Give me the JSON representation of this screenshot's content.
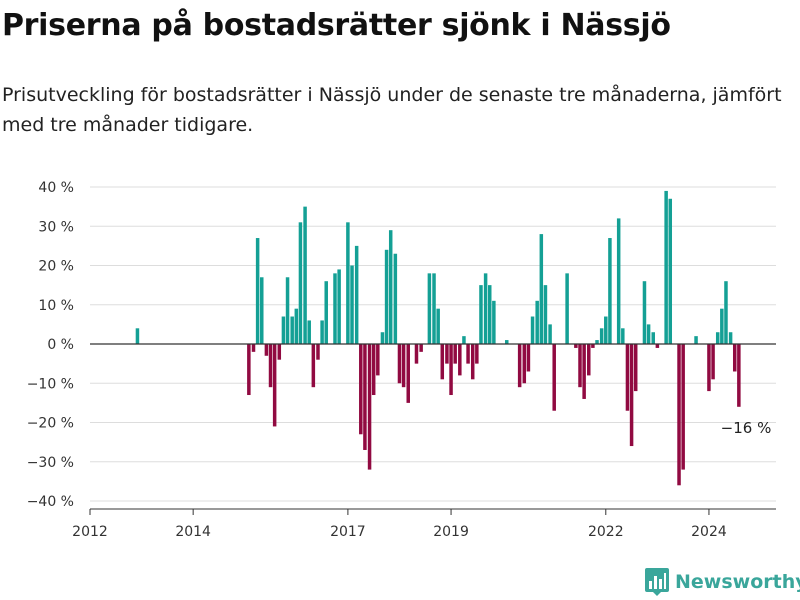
{
  "title": "Priserna på bostadsrätter sjönk i Nässjö",
  "subtitle": "Prisutveckling för bostadsrätter i Nässjö under de senaste tre månaderna, jämfört med tre månader tidigare.",
  "brand": {
    "name": "Newsworthy",
    "icon": "newsworthy-logo-icon"
  },
  "colors": {
    "positive": "#14a095",
    "negative": "#910a41",
    "grid": "#dddddd",
    "zero": "#333333",
    "brand": "#3aa69b"
  },
  "chart_data": {
    "type": "bar",
    "xlabel": "",
    "ylabel": "",
    "ylim": [
      -40,
      40
    ],
    "xlim": [
      2012,
      2025.3
    ],
    "y_ticks": [
      40,
      30,
      20,
      10,
      0,
      -10,
      -20,
      -30,
      -40
    ],
    "y_tick_labels": [
      "40 %",
      "30 %",
      "20 %",
      "10 %",
      "0 %",
      "−10 %",
      "−20 %",
      "−30 %",
      "−40 %"
    ],
    "x_ticks": [
      2012,
      2014,
      2017,
      2019,
      2022,
      2024
    ],
    "x_tick_labels": [
      "2012",
      "2014",
      "2017",
      "2019",
      "2022",
      "2024"
    ],
    "grid": true,
    "annotation": {
      "text": "−16 %",
      "x": 2024.6,
      "y": -16
    },
    "series": [
      {
        "values": [
          {
            "x": 2012.92,
            "y": 4
          },
          {
            "x": 2015.08,
            "y": -13
          },
          {
            "x": 2015.17,
            "y": -2
          },
          {
            "x": 2015.25,
            "y": 27
          },
          {
            "x": 2015.33,
            "y": 17
          },
          {
            "x": 2015.42,
            "y": -3
          },
          {
            "x": 2015.5,
            "y": -11
          },
          {
            "x": 2015.58,
            "y": -21
          },
          {
            "x": 2015.67,
            "y": -4
          },
          {
            "x": 2015.75,
            "y": 7
          },
          {
            "x": 2015.83,
            "y": 17
          },
          {
            "x": 2015.92,
            "y": 7
          },
          {
            "x": 2016.0,
            "y": 9
          },
          {
            "x": 2016.08,
            "y": 31
          },
          {
            "x": 2016.17,
            "y": 35
          },
          {
            "x": 2016.25,
            "y": 6
          },
          {
            "x": 2016.33,
            "y": -11
          },
          {
            "x": 2016.42,
            "y": -4
          },
          {
            "x": 2016.5,
            "y": 6
          },
          {
            "x": 2016.58,
            "y": 16
          },
          {
            "x": 2016.75,
            "y": 18
          },
          {
            "x": 2016.83,
            "y": 19
          },
          {
            "x": 2017.0,
            "y": 31
          },
          {
            "x": 2017.08,
            "y": 20
          },
          {
            "x": 2017.17,
            "y": 25
          },
          {
            "x": 2017.25,
            "y": -23
          },
          {
            "x": 2017.33,
            "y": -27
          },
          {
            "x": 2017.42,
            "y": -32
          },
          {
            "x": 2017.5,
            "y": -13
          },
          {
            "x": 2017.58,
            "y": -8
          },
          {
            "x": 2017.67,
            "y": 3
          },
          {
            "x": 2017.75,
            "y": 24
          },
          {
            "x": 2017.83,
            "y": 29
          },
          {
            "x": 2017.92,
            "y": 23
          },
          {
            "x": 2018.0,
            "y": -10
          },
          {
            "x": 2018.08,
            "y": -11
          },
          {
            "x": 2018.17,
            "y": -15
          },
          {
            "x": 2018.33,
            "y": -5
          },
          {
            "x": 2018.42,
            "y": -2
          },
          {
            "x": 2018.58,
            "y": 18
          },
          {
            "x": 2018.67,
            "y": 18
          },
          {
            "x": 2018.75,
            "y": 9
          },
          {
            "x": 2018.83,
            "y": -9
          },
          {
            "x": 2018.92,
            "y": -5
          },
          {
            "x": 2019.0,
            "y": -13
          },
          {
            "x": 2019.08,
            "y": -5
          },
          {
            "x": 2019.17,
            "y": -8
          },
          {
            "x": 2019.25,
            "y": 2
          },
          {
            "x": 2019.33,
            "y": -5
          },
          {
            "x": 2019.42,
            "y": -9
          },
          {
            "x": 2019.5,
            "y": -5
          },
          {
            "x": 2019.58,
            "y": 15
          },
          {
            "x": 2019.67,
            "y": 18
          },
          {
            "x": 2019.75,
            "y": 15
          },
          {
            "x": 2019.83,
            "y": 11
          },
          {
            "x": 2020.08,
            "y": 1
          },
          {
            "x": 2020.33,
            "y": -11
          },
          {
            "x": 2020.42,
            "y": -10
          },
          {
            "x": 2020.5,
            "y": -7
          },
          {
            "x": 2020.58,
            "y": 7
          },
          {
            "x": 2020.67,
            "y": 11
          },
          {
            "x": 2020.75,
            "y": 28
          },
          {
            "x": 2020.83,
            "y": 15
          },
          {
            "x": 2020.92,
            "y": 5
          },
          {
            "x": 2021.0,
            "y": -17
          },
          {
            "x": 2021.25,
            "y": 18
          },
          {
            "x": 2021.42,
            "y": -1
          },
          {
            "x": 2021.5,
            "y": -11
          },
          {
            "x": 2021.58,
            "y": -14
          },
          {
            "x": 2021.67,
            "y": -8
          },
          {
            "x": 2021.75,
            "y": -1
          },
          {
            "x": 2021.83,
            "y": 1
          },
          {
            "x": 2021.92,
            "y": 4
          },
          {
            "x": 2022.0,
            "y": 7
          },
          {
            "x": 2022.08,
            "y": 27
          },
          {
            "x": 2022.25,
            "y": 32
          },
          {
            "x": 2022.33,
            "y": 4
          },
          {
            "x": 2022.42,
            "y": -17
          },
          {
            "x": 2022.5,
            "y": -26
          },
          {
            "x": 2022.58,
            "y": -12
          },
          {
            "x": 2022.75,
            "y": 16
          },
          {
            "x": 2022.83,
            "y": 5
          },
          {
            "x": 2022.92,
            "y": 3
          },
          {
            "x": 2023.0,
            "y": -1
          },
          {
            "x": 2023.17,
            "y": 39
          },
          {
            "x": 2023.25,
            "y": 37
          },
          {
            "x": 2023.42,
            "y": -36
          },
          {
            "x": 2023.5,
            "y": -32
          },
          {
            "x": 2023.75,
            "y": 2
          },
          {
            "x": 2024.0,
            "y": -12
          },
          {
            "x": 2024.08,
            "y": -9
          },
          {
            "x": 2024.17,
            "y": 3
          },
          {
            "x": 2024.25,
            "y": 9
          },
          {
            "x": 2024.33,
            "y": 16
          },
          {
            "x": 2024.42,
            "y": 3
          },
          {
            "x": 2024.5,
            "y": -7
          },
          {
            "x": 2024.58,
            "y": -16
          }
        ]
      }
    ]
  }
}
